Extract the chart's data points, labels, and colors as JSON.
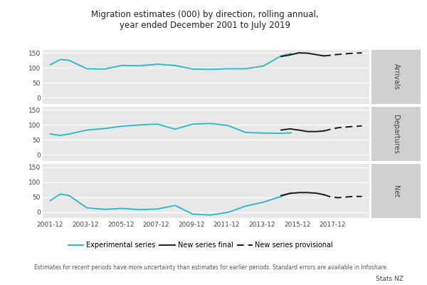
{
  "title": "Migration estimates (000) by direction, rolling annual,\nyear ended December 2001 to July 2019",
  "subtitle_note": "Estimates for recent periods have more uncertainty than estimates for earlier periods. Standard errors are available in Infoshare.",
  "source_note": "Stats NZ",
  "panel_labels": [
    "Arrivals",
    "Departures",
    "Net"
  ],
  "x_tick_labels": [
    "2001-12",
    "2003-12",
    "2005-12",
    "2007-12",
    "2009-12",
    "2011-12",
    "2013-12",
    "2015-12",
    "2017-12"
  ],
  "yticks": [
    0,
    50,
    100,
    150
  ],
  "panel_bg": "#e8e8e8",
  "strip_bg": "#d0d0d0",
  "exp_color": "#29b6c8",
  "new_final_color": "#1a1a1a",
  "new_prov_color": "#1a1a1a",
  "legend_labels": [
    "Experimental series",
    "New series final",
    "New series provisional"
  ],
  "x_min": 2001.5,
  "x_max": 2020.0,
  "arrivals_exp_x": [
    2001.92,
    2002.5,
    2003.0,
    2004.0,
    2005.0,
    2006.0,
    2007.0,
    2008.0,
    2009.0,
    2010.0,
    2011.0,
    2012.0,
    2013.0,
    2014.0,
    2015.0,
    2015.58
  ],
  "arrivals_exp_y": [
    110,
    128,
    125,
    97,
    96,
    108,
    107,
    112,
    108,
    96,
    95,
    97,
    97,
    106,
    140,
    148
  ],
  "arrivals_final_x": [
    2015.0,
    2015.5,
    2016.0,
    2016.5,
    2017.0,
    2017.42
  ],
  "arrivals_final_y": [
    138,
    143,
    150,
    149,
    144,
    140
  ],
  "arrivals_prov_x": [
    2017.42,
    2017.83,
    2018.25,
    2018.67,
    2019.08,
    2019.58
  ],
  "arrivals_prov_y": [
    140,
    142,
    145,
    147,
    149,
    150
  ],
  "departures_exp_x": [
    2001.92,
    2002.5,
    2003.0,
    2004.0,
    2005.0,
    2006.0,
    2007.0,
    2008.0,
    2009.0,
    2010.0,
    2011.0,
    2012.0,
    2013.0,
    2014.0,
    2015.0,
    2015.58
  ],
  "departures_exp_y": [
    70,
    65,
    70,
    83,
    88,
    96,
    100,
    103,
    86,
    103,
    105,
    98,
    75,
    73,
    72,
    74
  ],
  "departures_final_x": [
    2015.0,
    2015.5,
    2016.0,
    2016.5,
    2017.0,
    2017.42
  ],
  "departures_final_y": [
    83,
    87,
    83,
    78,
    78,
    80
  ],
  "departures_prov_x": [
    2017.42,
    2017.83,
    2018.25,
    2018.67,
    2019.08,
    2019.58
  ],
  "departures_prov_y": [
    80,
    86,
    91,
    93,
    95,
    97
  ],
  "net_exp_x": [
    2001.92,
    2002.5,
    2003.0,
    2004.0,
    2005.0,
    2006.0,
    2007.0,
    2008.0,
    2009.0,
    2010.0,
    2011.0,
    2012.0,
    2013.0,
    2014.0,
    2015.0,
    2015.58
  ],
  "net_exp_y": [
    38,
    60,
    55,
    14,
    9,
    12,
    8,
    10,
    22,
    -7,
    -10,
    -1,
    20,
    33,
    52,
    65
  ],
  "net_final_x": [
    2015.0,
    2015.5,
    2016.0,
    2016.5,
    2017.0,
    2017.42
  ],
  "net_final_y": [
    55,
    62,
    65,
    65,
    63,
    58
  ],
  "net_prov_x": [
    2017.42,
    2017.83,
    2018.25,
    2018.67,
    2019.08,
    2019.58
  ],
  "net_prov_y": [
    58,
    50,
    48,
    50,
    52,
    52
  ]
}
